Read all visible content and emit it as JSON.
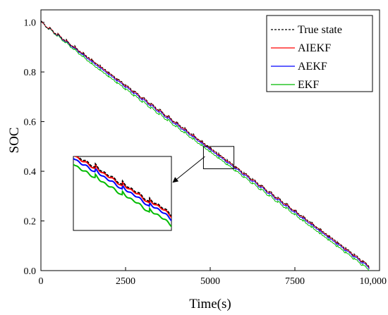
{
  "chart_data": {
    "type": "line",
    "xlabel": "Time(s)",
    "ylabel": "SOC",
    "xlim": [
      0,
      10000
    ],
    "ylim": [
      0,
      1.05
    ],
    "x_ticks": [
      0,
      2500,
      5000,
      7500,
      10000
    ],
    "x_tick_labels": [
      "0",
      "2500",
      "5000",
      "7500",
      "10,000"
    ],
    "y_ticks": [
      0,
      0.2,
      0.4,
      0.6,
      0.8,
      1.0
    ],
    "y_tick_labels": [
      "0.0",
      "0.2",
      "0.4",
      "0.6",
      "0.8",
      "1.0"
    ],
    "grid": false,
    "legend_position": "top-right",
    "x_end": 9700,
    "step_period": 250,
    "series": [
      {
        "name": "True state",
        "color": "#000000",
        "dash": "3,2",
        "y_start": 1.0,
        "y_end": 0.018,
        "offset_growth": 0.0
      },
      {
        "name": "AIEKF",
        "color": "#ff0000",
        "dash": "",
        "y_start": 1.0,
        "y_end": 0.018,
        "offset_growth": -0.002
      },
      {
        "name": "AEKF",
        "color": "#0000ff",
        "dash": "",
        "y_start": 1.0,
        "y_end": 0.018,
        "offset_growth": -0.007
      },
      {
        "name": "EKF",
        "color": "#00bb00",
        "dash": "",
        "y_start": 1.0,
        "y_end": 0.018,
        "offset_growth": -0.016
      }
    ],
    "zoom_region": {
      "x": [
        4800,
        5700
      ],
      "y": [
        0.41,
        0.5
      ]
    }
  }
}
